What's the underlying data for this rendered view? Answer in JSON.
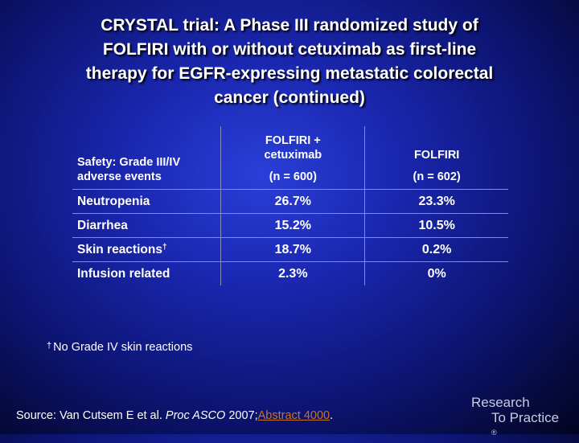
{
  "title": {
    "line1": "CRYSTAL trial: A Phase III randomized study of",
    "line2": "FOLFIRI with or without cetuximab as first-line",
    "line3": "therapy for EGFR-expressing metastatic colorectal",
    "line4": "cancer (continued)"
  },
  "table": {
    "header": {
      "col1_line1": "Safety: Grade III/IV",
      "col1_line2": "adverse events",
      "col2_line1": "FOLFIRI +",
      "col2_line2": "cetuximab",
      "col2_n": "(n = 600)",
      "col3_line1": "FOLFIRI",
      "col3_n": "(n = 602)"
    },
    "rows": [
      {
        "label": "Neutropenia",
        "marker": "",
        "v1": "26.7%",
        "v2": "23.3%"
      },
      {
        "label": "Diarrhea",
        "marker": "",
        "v1": "15.2%",
        "v2": "10.5%"
      },
      {
        "label": "Skin reactions",
        "marker": "†",
        "v1": "18.7%",
        "v2": "0.2%"
      },
      {
        "label": "Infusion related",
        "marker": "",
        "v1": "2.3%",
        "v2": "0%"
      }
    ]
  },
  "footnote": {
    "marker": "†",
    "text": "No Grade IV skin reactions"
  },
  "source": {
    "prefix": "Source: Van Cutsem E et al. ",
    "journal": "Proc ASCO",
    "year": " 2007;",
    "link": "Abstract 4000",
    "suffix": "."
  },
  "logo": {
    "line1": "Research",
    "line2": "To Practice",
    "mark": "®"
  }
}
